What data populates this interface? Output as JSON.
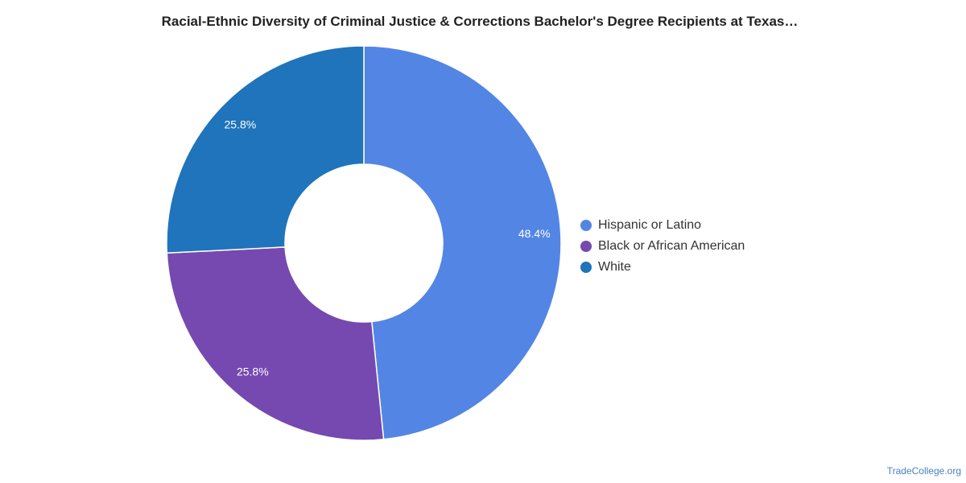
{
  "title": "Racial-Ethnic Diversity of Criminal Justice & Corrections Bachelor's Degree Recipients at Texas…",
  "credit": "TradeCollege.org",
  "chart_data": {
    "type": "pie",
    "donut": true,
    "title": "Racial-Ethnic Diversity of Criminal Justice & Corrections Bachelor's Degree Recipients at Texas…",
    "legend_position": "right",
    "categories": [
      "Hispanic or Latino",
      "Black or African American",
      "White"
    ],
    "values": [
      48.4,
      25.8,
      25.8
    ],
    "data_labels": [
      "48.4%",
      "25.8%",
      "25.8%"
    ],
    "colors": [
      "#5386e4",
      "#7549af",
      "#1f74bb"
    ]
  }
}
